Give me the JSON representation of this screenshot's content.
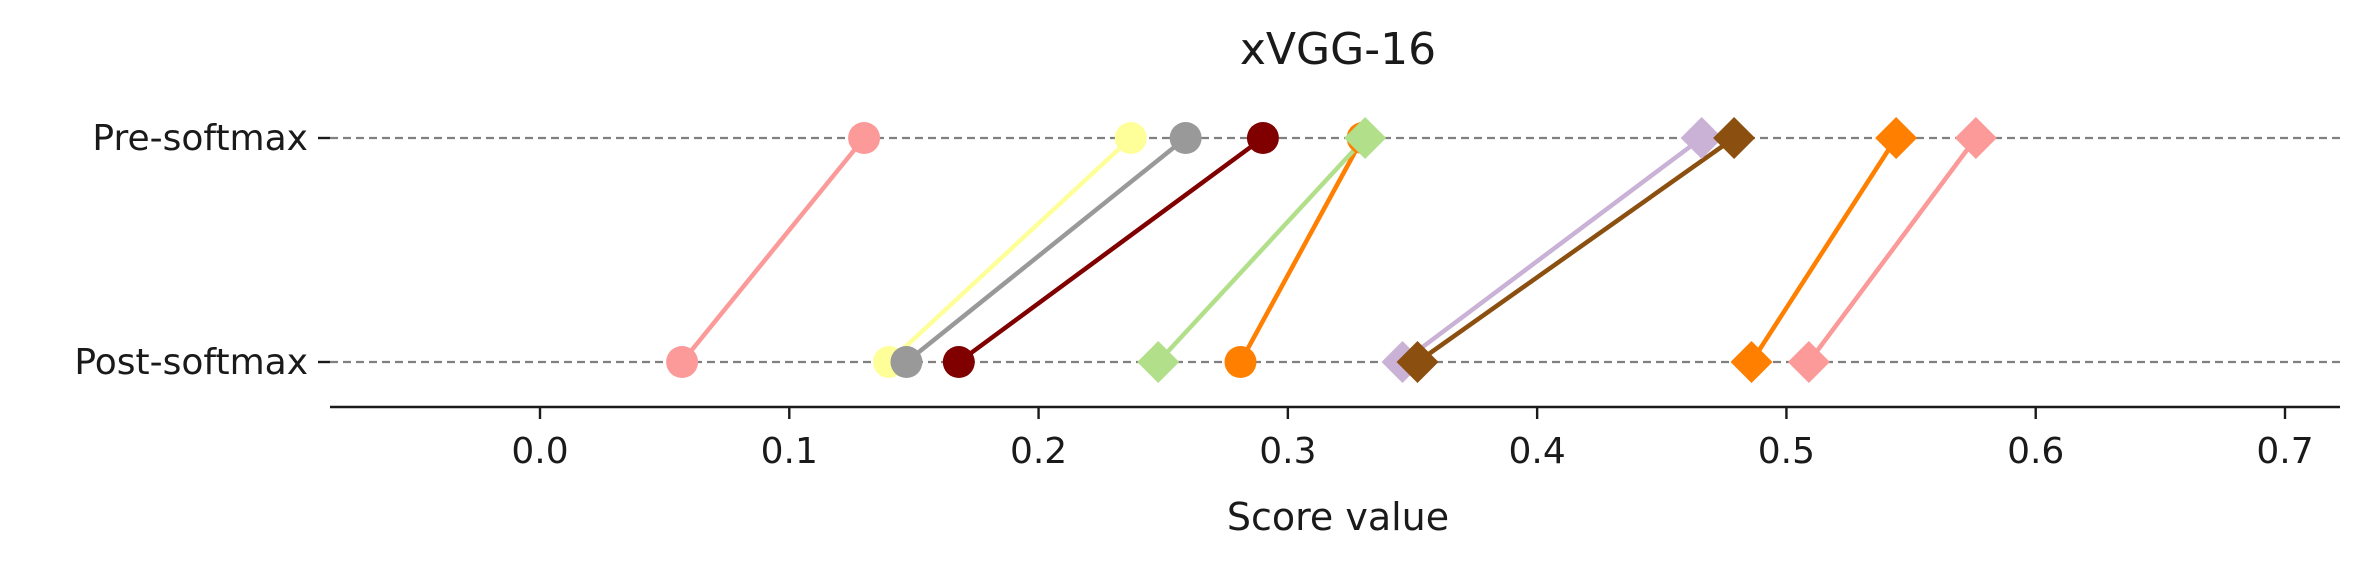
{
  "chart_data": {
    "type": "dumbbell",
    "title": "xVGG-16",
    "xlabel": "Score value",
    "ylabel": "",
    "xlim": [
      -0.085,
      0.725
    ],
    "xticks": [
      0.0,
      0.1,
      0.2,
      0.3,
      0.4,
      0.5,
      0.6,
      0.7
    ],
    "xtick_labels": [
      "0.0",
      "0.1",
      "0.2",
      "0.3",
      "0.4",
      "0.5",
      "0.6",
      "0.7"
    ],
    "categories": [
      "Pre-softmax",
      "Post-softmax"
    ],
    "gridlines": "dashed horizontal at each category",
    "series": [
      {
        "pre": 0.13,
        "post": 0.057,
        "color": "#fb9a99",
        "marker": "circle"
      },
      {
        "pre": 0.237,
        "post": 0.14,
        "color": "#ffff99",
        "marker": "circle"
      },
      {
        "pre": 0.259,
        "post": 0.147,
        "color": "#999999",
        "marker": "circle"
      },
      {
        "pre": 0.29,
        "post": 0.168,
        "color": "#800000",
        "marker": "circle"
      },
      {
        "pre": 0.33,
        "post": 0.281,
        "color": "#ff7f00",
        "marker": "circle"
      },
      {
        "pre": 0.331,
        "post": 0.248,
        "color": "#b2df8a",
        "marker": "diamond"
      },
      {
        "pre": 0.466,
        "post": 0.346,
        "color": "#cab2d6",
        "marker": "diamond"
      },
      {
        "pre": 0.479,
        "post": 0.352,
        "color": "#8b4f0f",
        "marker": "diamond"
      },
      {
        "pre": 0.544,
        "post": 0.486,
        "color": "#ff7f00",
        "marker": "diamond"
      },
      {
        "pre": 0.576,
        "post": 0.509,
        "color": "#fb9a99",
        "marker": "diamond"
      }
    ]
  }
}
